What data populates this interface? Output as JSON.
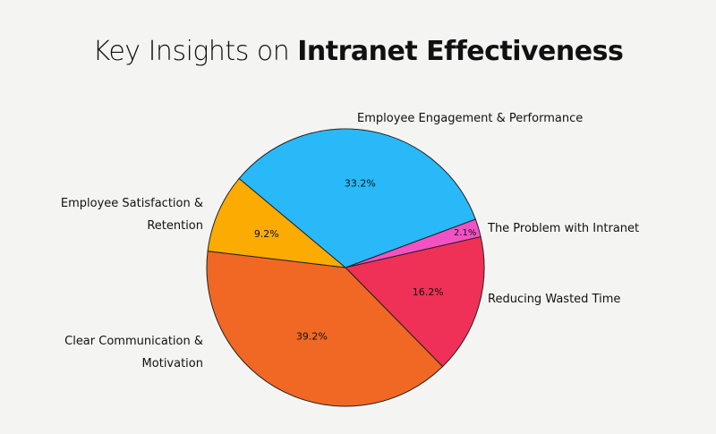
{
  "title": {
    "prefix": "Key Insights on ",
    "bold": "Intranet Effectiveness"
  },
  "chart_data": {
    "type": "pie",
    "title": "Key Insights on Intranet Effectiveness",
    "start_angle_deg": 69.6,
    "direction": "clockwise",
    "slices": [
      {
        "label": "The Problem with Intranet",
        "value": 2.1,
        "display": "2.1%",
        "color": "#f252c4"
      },
      {
        "label": "Reducing Wasted Time",
        "value": 16.2,
        "display": "16.2%",
        "color": "#ef3157"
      },
      {
        "label": "Clear Communication & Motivation",
        "value": 39.2,
        "display": "39.2%",
        "color": "#f06824"
      },
      {
        "label": "Employee Satisfaction & Retention",
        "value": 9.2,
        "display": "9.2%",
        "color": "#fbab02"
      },
      {
        "label": "Employee Engagement & Performance",
        "value": 33.2,
        "display": "33.2%",
        "color": "#29b9f8"
      }
    ]
  }
}
